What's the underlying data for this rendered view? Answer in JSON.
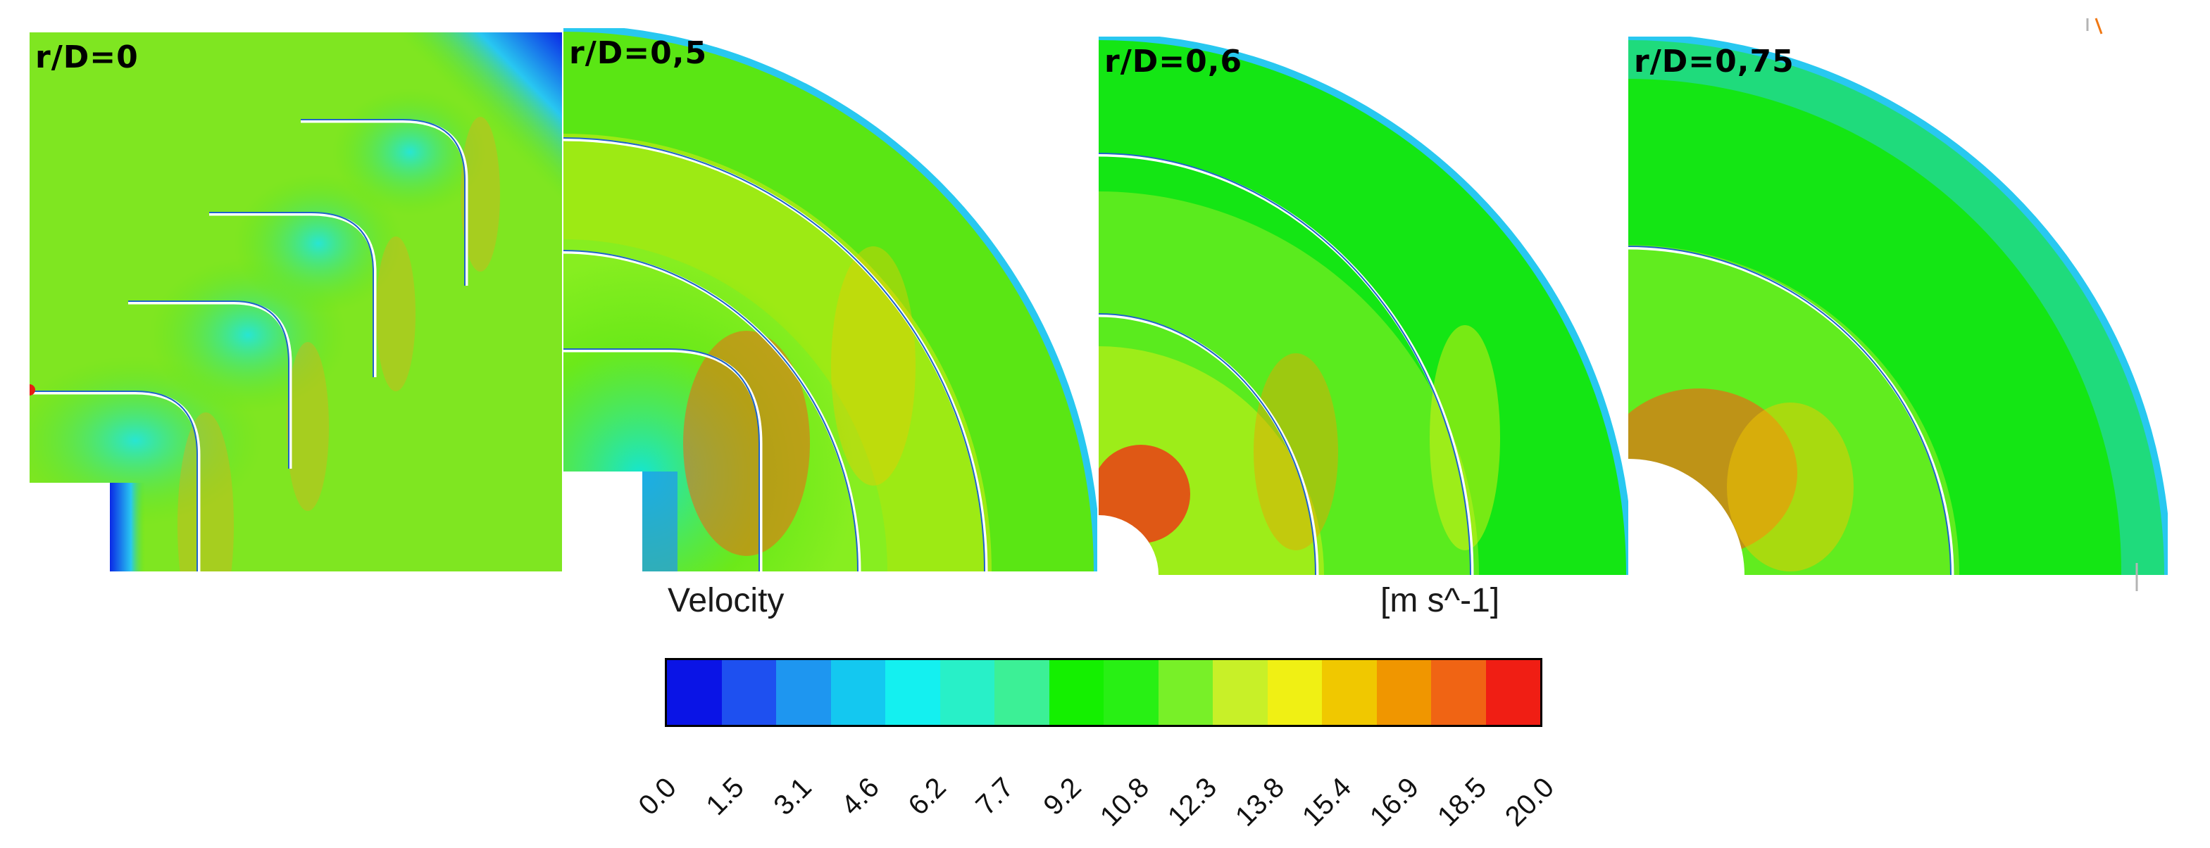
{
  "panels": [
    {
      "label": "r/D=0"
    },
    {
      "label": "r/D=0,5"
    },
    {
      "label": "r/D=0,6"
    },
    {
      "label": "r/D=0,75"
    }
  ],
  "legend": {
    "title": "Velocity",
    "units": "[m s^-1]",
    "ticks": [
      "0.0",
      "1.5",
      "3.1",
      "4.6",
      "6.2",
      "7.7",
      "9.2",
      "10.8",
      "12.3",
      "13.8",
      "15.4",
      "16.9",
      "18.5",
      "20.0"
    ],
    "min": 0.0,
    "max": 20.0,
    "colors": [
      "#0a14e6",
      "#1e50f0",
      "#1e96f0",
      "#14c8f0",
      "#14f0f0",
      "#28f0c8",
      "#3cf096",
      "#14f000",
      "#28f014",
      "#78f028",
      "#c8f028",
      "#f0f014",
      "#f0c800",
      "#f09600",
      "#f06414",
      "#f01e14"
    ]
  },
  "colors": {
    "background": "#ffffff",
    "flow_bulk": "#5ae614",
    "fast": "#f07814",
    "slow": "#1464f0",
    "mid": "#28dcc8"
  }
}
